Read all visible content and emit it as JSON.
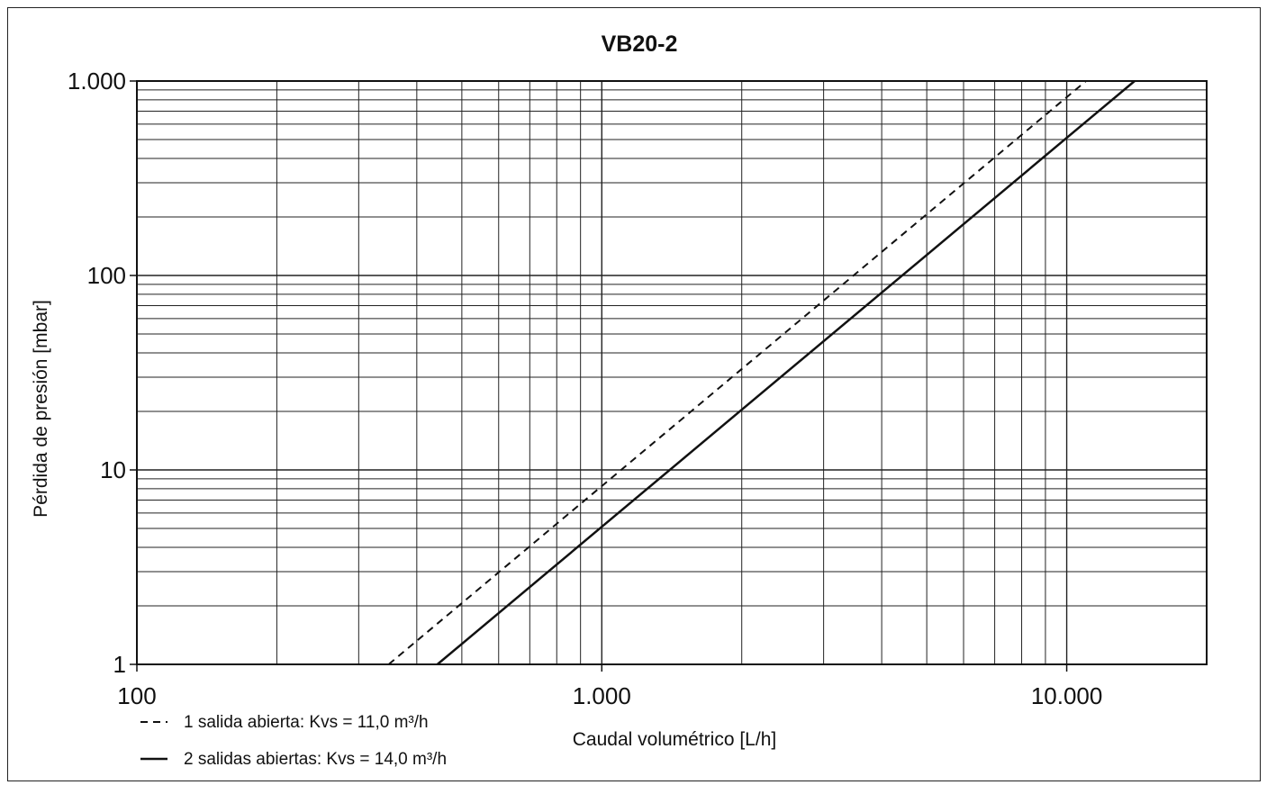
{
  "chart_data": {
    "type": "line",
    "title": "VB20-2",
    "xlabel": "Caudal volumétrico  [L/h]",
    "ylabel": "Pérdida de presión  [mbar]",
    "xscale": "log",
    "yscale": "log",
    "xlim": [
      100,
      20000
    ],
    "ylim": [
      1,
      1000
    ],
    "grid": true,
    "legend_position": "bottom-left",
    "x_ticks": [
      {
        "value": 100,
        "label": "100"
      },
      {
        "value": 1000,
        "label": "1.000"
      },
      {
        "value": 10000,
        "label": "10.000"
      }
    ],
    "y_ticks": [
      {
        "value": 1,
        "label": "1"
      },
      {
        "value": 10,
        "label": "10"
      },
      {
        "value": 100,
        "label": "100"
      },
      {
        "value": 1000,
        "label": "1.000"
      }
    ],
    "series": [
      {
        "name": "1 salida abierta: Kvs =  11,0 m³/h",
        "style": "dashed",
        "kvs": 11.0,
        "x": [
          348,
          11000
        ],
        "y": [
          1,
          1000
        ]
      },
      {
        "name": "2 salidas abiertas: Kvs =  14,0 m³/h",
        "style": "solid",
        "kvs": 14.0,
        "x": [
          443,
          14000
        ],
        "y": [
          1,
          1000
        ]
      }
    ]
  }
}
